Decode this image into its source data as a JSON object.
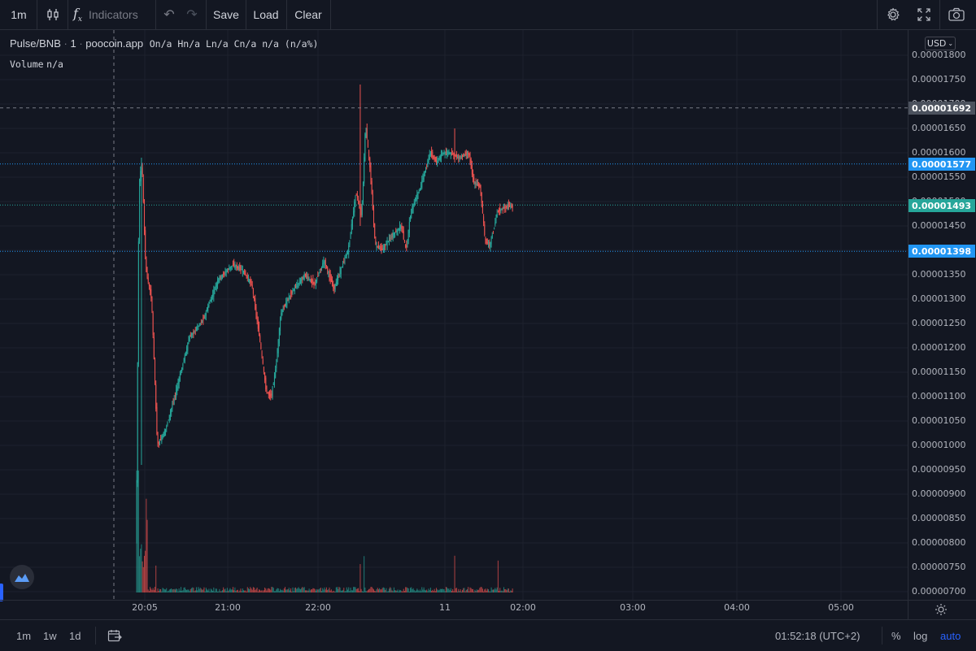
{
  "toolbar": {
    "interval": "1m",
    "indicators": "Indicators",
    "save": "Save",
    "load": "Load",
    "clear": "Clear"
  },
  "legend": {
    "symbol": "Pulse/BNB",
    "interval": "1",
    "source": "poocoin.app",
    "ohlc": "On/a Hn/a Ln/a Cn/a n/a (n/a%)",
    "volume_label": "Volume",
    "volume_value": "n/a"
  },
  "currency": "USD",
  "price_axis": [
    "0.00001800",
    "0.00001750",
    "0.00001700",
    "0.00001650",
    "0.00001600",
    "0.00001550",
    "0.00001500",
    "0.00001450",
    "0.00001400",
    "0.00001350",
    "0.00001300",
    "0.00001250",
    "0.00001200",
    "0.00001150",
    "0.00001100",
    "0.00001050",
    "0.00001000",
    "0.00000950",
    "0.00000900",
    "0.00000850",
    "0.00000800",
    "0.00000750",
    "0.00000700"
  ],
  "time_axis": [
    "20:05",
    "21:00",
    "22:00",
    "11",
    "02:00",
    "03:00",
    "04:00",
    "05:00"
  ],
  "price_tags": {
    "crosshair": "0.00001692",
    "upper": "0.00001577",
    "last": "0.00001493",
    "lower": "0.00001398"
  },
  "colors": {
    "up": "#26a69a",
    "down": "#ef5350",
    "accent": "#2962ff",
    "line_blue": "#2196f3",
    "tag_blue": "#2196f3",
    "tag_last": "#26a69a",
    "tag_crosshair": "#4c525e"
  },
  "chart_data": {
    "type": "candlestick",
    "interval": "1m",
    "xlabels": [
      "20:05",
      "21:00",
      "22:00",
      "11",
      "02:00",
      "03:00",
      "04:00",
      "05:00"
    ],
    "ylim": [
      7e-06,
      1.8e-05
    ],
    "price_path": [
      [
        0,
        8e-06
      ],
      [
        3,
        1.54e-05
      ],
      [
        6,
        1.58e-05
      ],
      [
        10,
        1.36e-05
      ],
      [
        16,
        1.3e-05
      ],
      [
        22,
        1e-05
      ],
      [
        30,
        1.03e-05
      ],
      [
        40,
        1.1e-05
      ],
      [
        55,
        1.22e-05
      ],
      [
        70,
        1.26e-05
      ],
      [
        85,
        1.34e-05
      ],
      [
        100,
        1.37e-05
      ],
      [
        110,
        1.36e-05
      ],
      [
        120,
        1.33e-05
      ],
      [
        128,
        1.22e-05
      ],
      [
        135,
        1.11e-05
      ],
      [
        140,
        1.1e-05
      ],
      [
        145,
        1.16e-05
      ],
      [
        150,
        1.27e-05
      ],
      [
        160,
        1.31e-05
      ],
      [
        175,
        1.35e-05
      ],
      [
        185,
        1.33e-05
      ],
      [
        195,
        1.38e-05
      ],
      [
        205,
        1.32e-05
      ],
      [
        212,
        1.36e-05
      ],
      [
        220,
        1.4e-05
      ],
      [
        228,
        1.52e-05
      ],
      [
        234,
        1.47e-05
      ],
      [
        238,
        1.66e-05
      ],
      [
        243,
        1.56e-05
      ],
      [
        248,
        1.41e-05
      ],
      [
        255,
        1.4e-05
      ],
      [
        265,
        1.43e-05
      ],
      [
        275,
        1.45e-05
      ],
      [
        280,
        1.4e-05
      ],
      [
        285,
        1.48e-05
      ],
      [
        295,
        1.53e-05
      ],
      [
        305,
        1.6e-05
      ],
      [
        312,
        1.58e-05
      ],
      [
        318,
        1.6e-05
      ],
      [
        325,
        1.6e-05
      ],
      [
        335,
        1.59e-05
      ],
      [
        345,
        1.6e-05
      ],
      [
        350,
        1.54e-05
      ],
      [
        357,
        1.53e-05
      ],
      [
        362,
        1.42e-05
      ],
      [
        367,
        1.41e-05
      ],
      [
        375,
        1.48e-05
      ],
      [
        385,
        1.49e-05
      ],
      [
        390,
        1.49e-05
      ]
    ],
    "spikes": [
      {
        "t": 5,
        "high": 1.59e-05,
        "low": 9.6e-06
      },
      {
        "t": 232,
        "high": 1.74e-05,
        "low": 1.45e-05
      },
      {
        "t": 330,
        "high": 1.65e-05,
        "low": 1.58e-05
      }
    ],
    "volume_spikes": [
      2,
      4,
      6,
      8,
      20,
      232,
      236,
      330,
      375
    ]
  },
  "bottombar": {
    "range_1m": "1m",
    "range_1w": "1w",
    "range_1d": "1d",
    "clock": "01:52:18 (UTC+2)",
    "percent": "%",
    "log": "log",
    "auto": "auto"
  }
}
